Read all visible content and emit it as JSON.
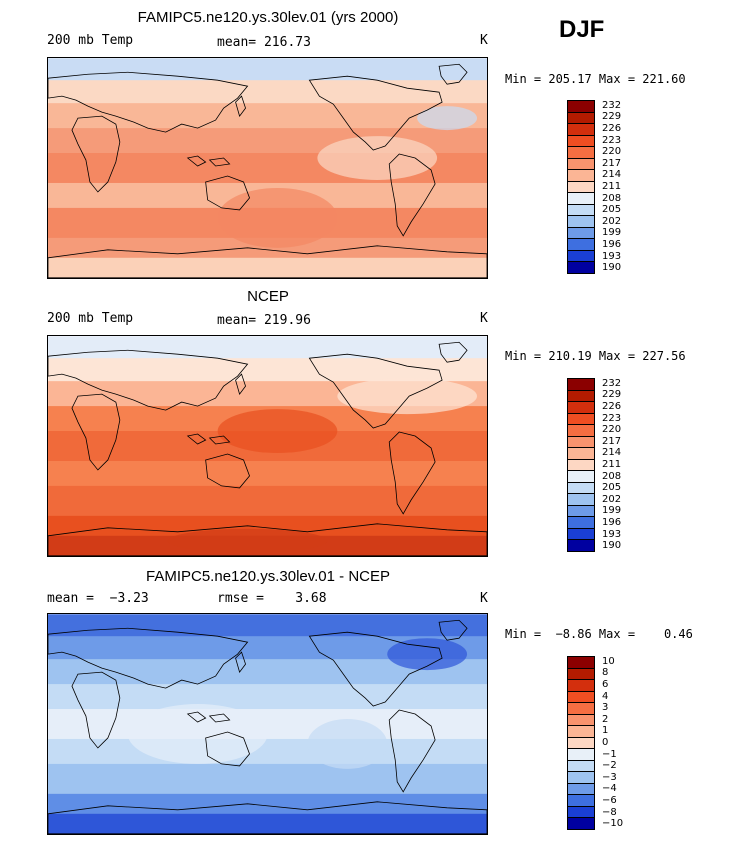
{
  "season": "DJF",
  "panels": [
    {
      "title": "FAMIPC5.ne120.ys.30lev.01 (yrs 2000)",
      "left_label": "200 mb Temp",
      "center_label": "mean= 216.73",
      "units": "K",
      "minmax": "Min = 205.17 Max = 221.60",
      "field": "model"
    },
    {
      "title": "NCEP",
      "left_label": "200 mb Temp",
      "center_label": "mean= 219.96",
      "units": "K",
      "minmax": "Min = 210.19 Max = 227.56",
      "field": "obs"
    },
    {
      "title": "FAMIPC5.ne120.ys.30lev.01 - NCEP",
      "left_label": "mean =  −3.23",
      "center_label": "rmse =    3.68",
      "units": "K",
      "minmax": "Min =  −8.86 Max =    0.46",
      "field": "diff"
    }
  ],
  "colorbars": {
    "absolute": {
      "labels": [
        "232",
        "229",
        "226",
        "223",
        "220",
        "217",
        "214",
        "211",
        "208",
        "205",
        "202",
        "199",
        "196",
        "193",
        "190"
      ],
      "colors": [
        "#8b0000",
        "#b31b00",
        "#d32f0d",
        "#ef4e22",
        "#f56e42",
        "#f8936e",
        "#fbb595",
        "#fdd7c3",
        "#e8f0f8",
        "#c4dcf5",
        "#9ec3f0",
        "#6e9be8",
        "#3e6fe0",
        "#1a3fd4",
        "#0000a0"
      ]
    },
    "difference": {
      "labels": [
        "10",
        "8",
        "6",
        "4",
        "3",
        "2",
        "1",
        "0",
        "−1",
        "−2",
        "−3",
        "−4",
        "−6",
        "−8",
        "−10"
      ],
      "colors": [
        "#8b0000",
        "#b31b00",
        "#d32f0d",
        "#ef4e22",
        "#f56e42",
        "#f8936e",
        "#fbb595",
        "#fdd7c3",
        "#e8f0f8",
        "#c4dcf5",
        "#9ec3f0",
        "#6e9be8",
        "#3e6fe0",
        "#1a3fd4",
        "#0000a0"
      ]
    }
  },
  "map_colors": {
    "model": [
      "#c9dcf4",
      "#fbd9c4",
      "#f9b797",
      "#f59b79",
      "#f48862",
      "#f9b797",
      "#f48862",
      "#f59b79",
      "#fbd1b8"
    ],
    "obs": [
      "#e3ecf8",
      "#fde5d6",
      "#fbb595",
      "#f6814f",
      "#f06a3a",
      "#f6814f",
      "#f06a3a",
      "#e8501f",
      "#d23c17"
    ],
    "diff": [
      "#4470de",
      "#6e9be8",
      "#9ec3f0",
      "#c4dcf5",
      "#e6eef9",
      "#c4dcf5",
      "#9ec3f0",
      "#5f8ee6",
      "#2e56d8"
    ]
  }
}
